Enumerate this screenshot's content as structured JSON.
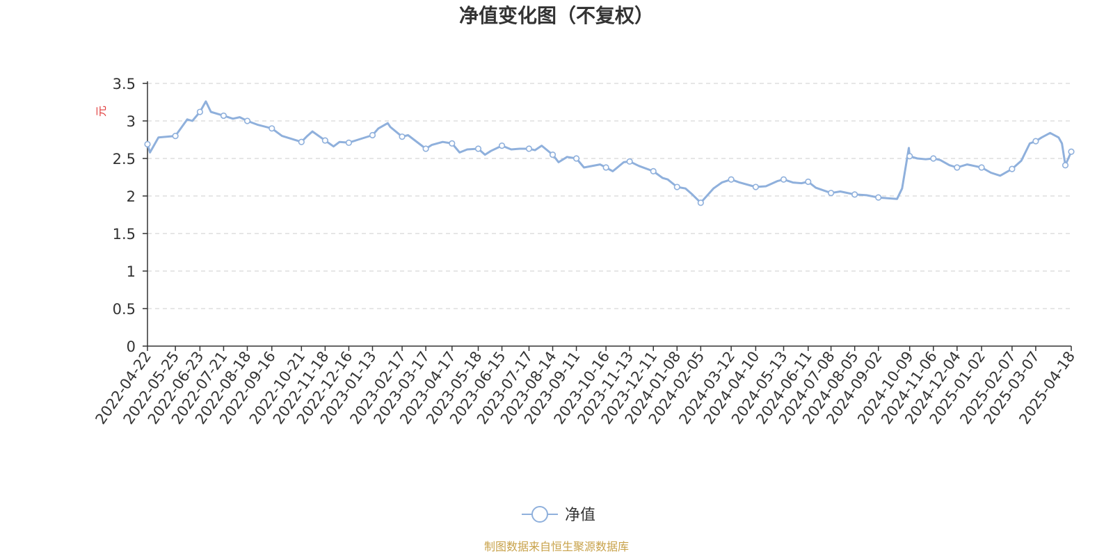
{
  "chart_data": {
    "type": "line",
    "title": "净值变化图（不复权）",
    "ylabel": "元",
    "ylim": [
      0,
      3.5
    ],
    "yticks": [
      "0",
      "0.5",
      "1",
      "1.5",
      "2",
      "2.5",
      "3",
      "3.5"
    ],
    "grid": true,
    "legend_position": "bottom-center",
    "x_ticks": [
      "2022-04-22",
      "2022-05-25",
      "2022-06-23",
      "2022-07-21",
      "2022-08-18",
      "2022-09-16",
      "2022-10-21",
      "2022-11-18",
      "2022-12-16",
      "2023-01-13",
      "2023-02-17",
      "2023-03-17",
      "2023-04-17",
      "2023-05-18",
      "2023-06-15",
      "2023-07-17",
      "2023-08-14",
      "2023-09-11",
      "2023-10-16",
      "2023-11-13",
      "2023-12-11",
      "2024-01-08",
      "2024-02-05",
      "2024-03-12",
      "2024-04-10",
      "2024-05-13",
      "2024-06-11",
      "2024-07-08",
      "2024-08-05",
      "2024-09-02",
      "2024-10-09",
      "2024-11-06",
      "2024-12-04",
      "2025-01-02",
      "2025-02-07",
      "2025-03-07",
      "2025-04-18"
    ],
    "series": [
      {
        "name": "净值",
        "color": "#8fb0dc",
        "x": [
          "2022-04-22",
          "2022-04-25",
          "2022-05-05",
          "2022-05-25",
          "2022-06-08",
          "2022-06-14",
          "2022-06-23",
          "2022-06-30",
          "2022-07-06",
          "2022-07-21",
          "2022-08-01",
          "2022-08-09",
          "2022-08-18",
          "2022-08-30",
          "2022-09-16",
          "2022-09-28",
          "2022-10-21",
          "2022-10-28",
          "2022-11-03",
          "2022-11-18",
          "2022-11-28",
          "2022-12-05",
          "2022-12-16",
          "2022-12-27",
          "2023-01-13",
          "2023-01-20",
          "2023-01-31",
          "2023-02-03",
          "2023-02-17",
          "2023-02-24",
          "2023-03-03",
          "2023-03-17",
          "2023-03-24",
          "2023-04-06",
          "2023-04-17",
          "2023-04-26",
          "2023-05-05",
          "2023-05-18",
          "2023-05-26",
          "2023-06-02",
          "2023-06-15",
          "2023-06-26",
          "2023-07-06",
          "2023-07-17",
          "2023-07-24",
          "2023-08-01",
          "2023-08-14",
          "2023-08-21",
          "2023-08-31",
          "2023-09-11",
          "2023-09-20",
          "2023-10-09",
          "2023-10-16",
          "2023-10-24",
          "2023-11-06",
          "2023-11-13",
          "2023-11-24",
          "2023-12-11",
          "2023-12-22",
          "2023-12-28",
          "2024-01-08",
          "2024-01-18",
          "2024-01-26",
          "2024-02-05",
          "2024-02-20",
          "2024-03-01",
          "2024-03-12",
          "2024-03-22",
          "2024-04-10",
          "2024-04-22",
          "2024-05-06",
          "2024-05-13",
          "2024-05-24",
          "2024-06-03",
          "2024-06-11",
          "2024-06-20",
          "2024-07-08",
          "2024-07-19",
          "2024-08-05",
          "2024-08-19",
          "2024-09-02",
          "2024-09-13",
          "2024-09-24",
          "2024-09-30",
          "2024-10-08",
          "2024-10-09",
          "2024-10-18",
          "2024-10-28",
          "2024-11-06",
          "2024-11-14",
          "2024-11-25",
          "2024-12-04",
          "2024-12-16",
          "2025-01-02",
          "2025-01-13",
          "2025-01-24",
          "2025-02-07",
          "2025-02-18",
          "2025-02-28",
          "2025-03-07",
          "2025-03-14",
          "2025-03-24",
          "2025-04-03",
          "2025-04-07",
          "2025-04-11",
          "2025-04-18"
        ],
        "values": [
          2.69,
          2.58,
          2.78,
          2.8,
          3.02,
          3.0,
          3.12,
          3.26,
          3.12,
          3.07,
          3.03,
          3.05,
          3.0,
          2.95,
          2.9,
          2.8,
          2.72,
          2.8,
          2.86,
          2.74,
          2.66,
          2.72,
          2.71,
          2.75,
          2.81,
          2.9,
          2.97,
          2.92,
          2.79,
          2.81,
          2.75,
          2.63,
          2.68,
          2.72,
          2.7,
          2.58,
          2.62,
          2.63,
          2.55,
          2.6,
          2.67,
          2.62,
          2.63,
          2.63,
          2.61,
          2.67,
          2.55,
          2.45,
          2.52,
          2.5,
          2.38,
          2.42,
          2.38,
          2.33,
          2.45,
          2.46,
          2.4,
          2.33,
          2.24,
          2.22,
          2.12,
          2.1,
          2.02,
          1.91,
          2.1,
          2.18,
          2.22,
          2.18,
          2.12,
          2.13,
          2.2,
          2.22,
          2.18,
          2.17,
          2.19,
          2.11,
          2.04,
          2.06,
          2.02,
          2.01,
          1.98,
          1.97,
          1.96,
          2.1,
          2.64,
          2.53,
          2.5,
          2.49,
          2.5,
          2.48,
          2.41,
          2.38,
          2.42,
          2.38,
          2.31,
          2.27,
          2.36,
          2.47,
          2.7,
          2.73,
          2.78,
          2.84,
          2.78,
          2.7,
          2.41,
          2.59
        ],
        "markers_x": [
          "2022-04-22",
          "2022-05-25",
          "2022-06-23",
          "2022-07-21",
          "2022-08-18",
          "2022-09-16",
          "2022-10-21",
          "2022-11-18",
          "2022-12-16",
          "2023-01-13",
          "2023-02-17",
          "2023-03-17",
          "2023-04-17",
          "2023-05-18",
          "2023-06-15",
          "2023-07-17",
          "2023-08-14",
          "2023-09-11",
          "2023-10-16",
          "2023-11-13",
          "2023-12-11",
          "2024-01-08",
          "2024-02-05",
          "2024-03-12",
          "2024-04-10",
          "2024-05-13",
          "2024-06-11",
          "2024-07-08",
          "2024-08-05",
          "2024-09-02",
          "2024-10-09",
          "2024-11-06",
          "2024-12-04",
          "2025-01-02",
          "2025-02-07",
          "2025-03-07",
          "2025-04-11",
          "2025-04-18"
        ]
      }
    ]
  },
  "footer": "制图数据来自恒生聚源数据库",
  "colors": {
    "line": "#8fb0dc",
    "unit": "#e03c3c",
    "footer": "#c8a24a",
    "grid": "#cccccc",
    "axis": "#333333"
  }
}
